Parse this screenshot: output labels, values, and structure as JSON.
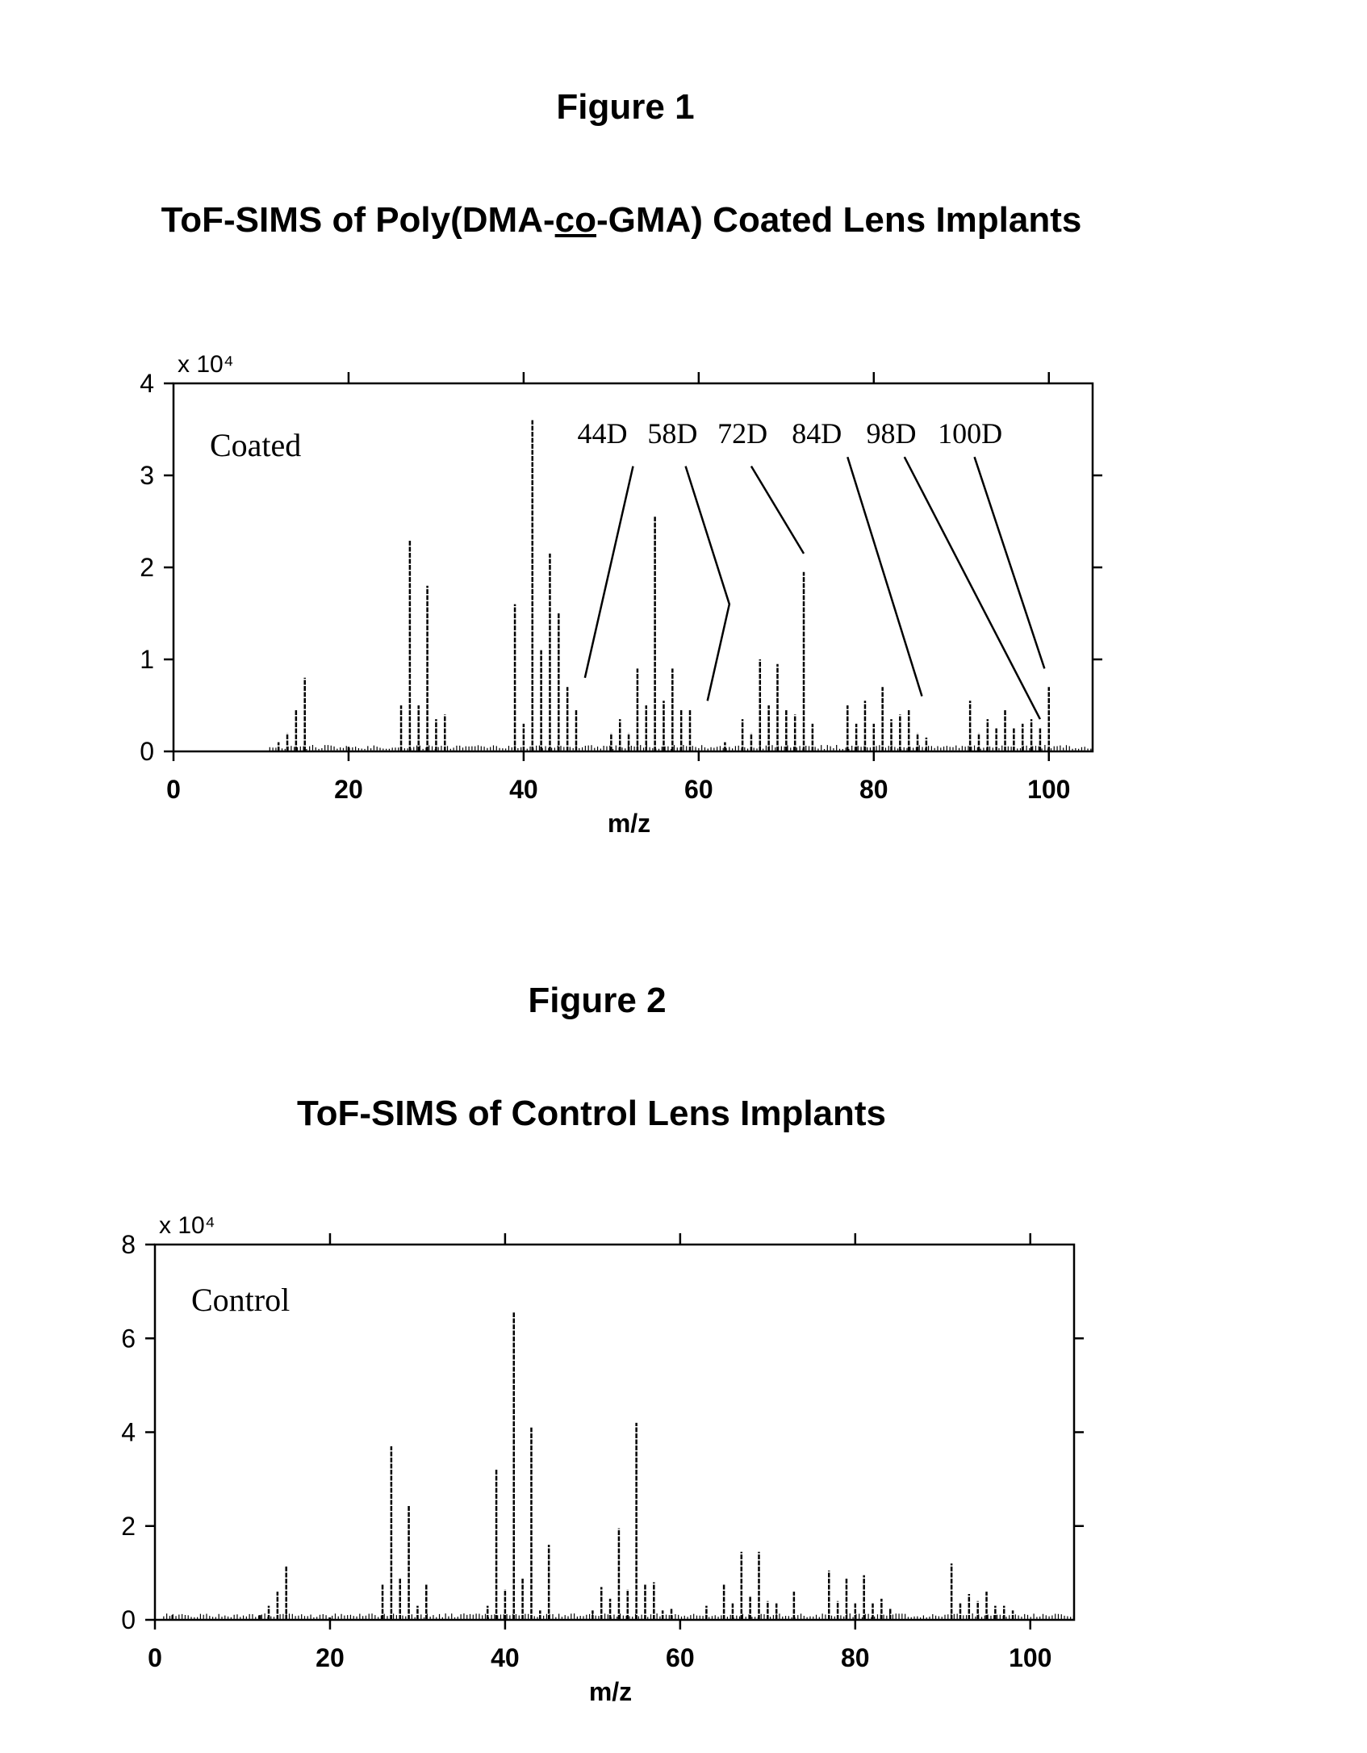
{
  "figure1": {
    "label": "Figure 1",
    "title_pre": "ToF-SIMS of Poly(DMA-",
    "title_co": "co",
    "title_post": "-GMA) Coated Lens Implants"
  },
  "figure2": {
    "label": "Figure 2",
    "title": "ToF-SIMS of Control Lens Implants"
  },
  "chart_data": [
    {
      "type": "bar",
      "title": "ToF-SIMS of Poly(DMA-co-GMA) Coated Lens Implants",
      "xlabel": "m/z",
      "ylabel": "",
      "y_multiplier": "x 10⁴",
      "xlim": [
        0,
        105
      ],
      "ylim": [
        0,
        4
      ],
      "xticks": [
        0,
        20,
        40,
        60,
        80,
        100
      ],
      "yticks": [
        0,
        1,
        2,
        3,
        4
      ],
      "inset_label": "Coated",
      "annotations": [
        "44D",
        "58D",
        "72D",
        "84D",
        "98D",
        "100D"
      ],
      "x": [
        12,
        13,
        14,
        15,
        20,
        26,
        27,
        28,
        29,
        30,
        31,
        39,
        40,
        41,
        42,
        43,
        44,
        45,
        46,
        50,
        51,
        52,
        53,
        54,
        55,
        56,
        57,
        58,
        59,
        63,
        65,
        66,
        67,
        68,
        69,
        70,
        71,
        72,
        73,
        77,
        78,
        79,
        80,
        81,
        82,
        83,
        84,
        85,
        86,
        91,
        92,
        93,
        94,
        95,
        96,
        97,
        98,
        99,
        100
      ],
      "values": [
        0.1,
        0.2,
        0.45,
        0.8,
        0.05,
        0.5,
        2.3,
        0.5,
        1.8,
        0.35,
        0.4,
        1.6,
        0.3,
        3.6,
        1.1,
        2.15,
        1.5,
        0.7,
        0.45,
        0.2,
        0.35,
        0.2,
        0.9,
        0.5,
        2.55,
        0.55,
        0.9,
        0.45,
        0.45,
        0.1,
        0.35,
        0.2,
        1.0,
        0.5,
        0.95,
        0.45,
        0.4,
        1.95,
        0.3,
        0.5,
        0.3,
        0.55,
        0.3,
        0.7,
        0.35,
        0.4,
        0.45,
        0.2,
        0.15,
        0.55,
        0.2,
        0.35,
        0.25,
        0.45,
        0.25,
        0.3,
        0.35,
        0.25,
        0.7
      ]
    },
    {
      "type": "bar",
      "title": "ToF-SIMS of Control Lens Implants",
      "xlabel": "m/z",
      "ylabel": "",
      "y_multiplier": "x 10⁴",
      "xlim": [
        0,
        105
      ],
      "ylim": [
        0,
        8
      ],
      "xticks": [
        0,
        20,
        40,
        60,
        80,
        100
      ],
      "yticks": [
        0,
        2,
        4,
        6,
        8
      ],
      "inset_label": "Control",
      "annotations": [],
      "x": [
        2,
        12,
        13,
        14,
        15,
        20,
        26,
        27,
        28,
        29,
        30,
        31,
        38,
        39,
        40,
        41,
        42,
        43,
        44,
        45,
        50,
        51,
        52,
        53,
        54,
        55,
        56,
        57,
        58,
        59,
        63,
        65,
        66,
        67,
        68,
        69,
        70,
        71,
        73,
        77,
        78,
        79,
        80,
        81,
        82,
        83,
        84,
        91,
        92,
        93,
        94,
        95,
        96,
        97,
        98
      ],
      "values": [
        0.1,
        0.1,
        0.3,
        0.6,
        1.15,
        0.05,
        0.75,
        3.7,
        0.9,
        2.45,
        0.3,
        0.75,
        0.3,
        3.2,
        0.65,
        6.55,
        0.9,
        4.1,
        0.2,
        1.6,
        0.2,
        0.7,
        0.45,
        1.95,
        0.65,
        4.2,
        0.75,
        0.8,
        0.2,
        0.25,
        0.3,
        0.75,
        0.35,
        1.45,
        0.5,
        1.45,
        0.4,
        0.35,
        0.6,
        1.05,
        0.4,
        0.9,
        0.35,
        0.95,
        0.35,
        0.45,
        0.25,
        1.2,
        0.35,
        0.55,
        0.4,
        0.6,
        0.3,
        0.3,
        0.2
      ]
    }
  ]
}
